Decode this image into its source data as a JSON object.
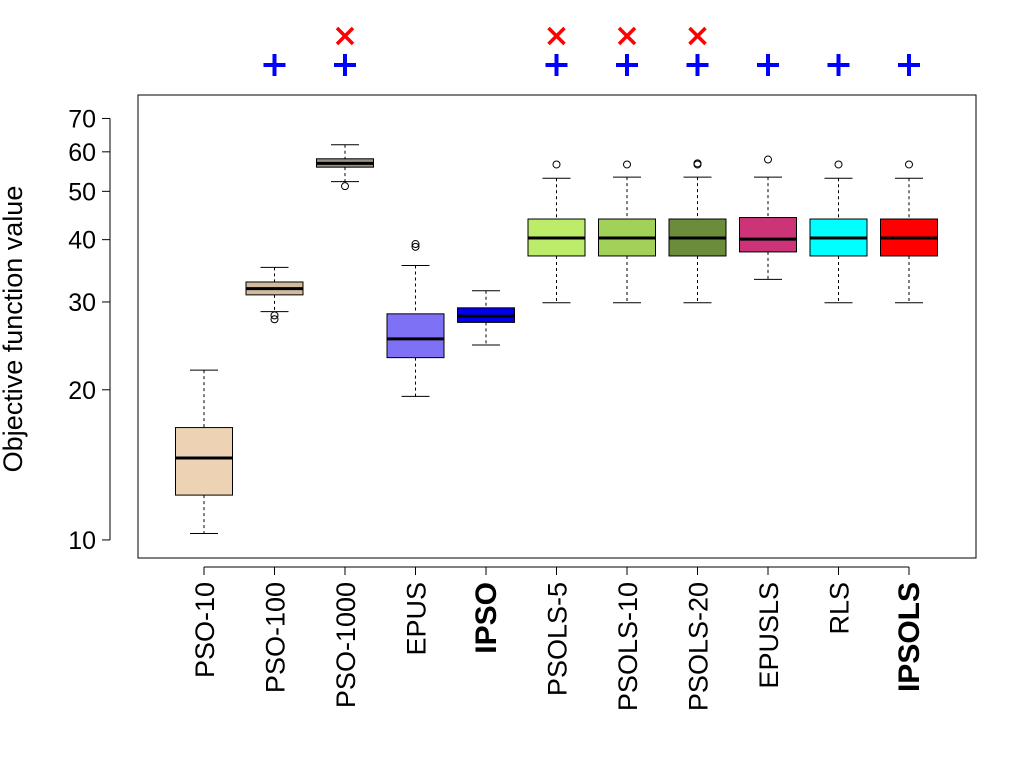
{
  "chart_data": {
    "type": "boxplot",
    "ylabel": "Objective function value",
    "y_scale": "log",
    "ylim": [
      9.2,
      78
    ],
    "y_ticks": [
      10,
      20,
      30,
      40,
      50,
      60,
      70
    ],
    "categories": [
      "PSO-10",
      "PSO-100",
      "PSO-1000",
      "EPUS",
      "IPSO",
      "PSOLS-5",
      "PSOLS-10",
      "PSOLS-20",
      "EPUSLS",
      "RLS",
      "IPSOLS"
    ],
    "bold_categories": [
      "IPSO",
      "IPSOLS"
    ],
    "boxes": [
      {
        "label": "PSO-10",
        "whisker_low": 10.3,
        "q1": 12.3,
        "median": 14.6,
        "q3": 16.8,
        "whisker_high": 21.9,
        "outliers": [],
        "color": "#EDD3B4"
      },
      {
        "label": "PSO-100",
        "whisker_low": 28.7,
        "q1": 31.0,
        "median": 31.9,
        "q3": 32.9,
        "whisker_high": 35.2,
        "outliers": [
          27.7,
          28.2
        ],
        "color": "#D2BCA0"
      },
      {
        "label": "PSO-1000",
        "whisker_low": 52.3,
        "q1": 55.9,
        "median": 56.9,
        "q3": 58.1,
        "whisker_high": 62.0,
        "outliers": [
          51.2
        ],
        "color": "#9C9183"
      },
      {
        "label": "EPUS",
        "whisker_low": 19.4,
        "q1": 23.2,
        "median": 25.3,
        "q3": 28.4,
        "whisker_high": 35.5,
        "outliers": [
          38.7,
          39.2
        ],
        "color": "#7F71F5"
      },
      {
        "label": "IPSO",
        "whisker_low": 24.6,
        "q1": 27.3,
        "median": 28.1,
        "q3": 29.2,
        "whisker_high": 31.6,
        "outliers": [],
        "color": "#0000EE"
      },
      {
        "label": "PSOLS-5",
        "whisker_low": 29.9,
        "q1": 37.1,
        "median": 40.3,
        "q3": 44.0,
        "whisker_high": 53.1,
        "outliers": [
          56.6
        ],
        "color": "#BDEB6A"
      },
      {
        "label": "PSOLS-10",
        "whisker_low": 29.9,
        "q1": 37.1,
        "median": 40.3,
        "q3": 44.0,
        "whisker_high": 53.4,
        "outliers": [
          56.6
        ],
        "color": "#A2D159"
      },
      {
        "label": "PSOLS-20",
        "whisker_low": 29.9,
        "q1": 37.1,
        "median": 40.3,
        "q3": 44.0,
        "whisker_high": 53.4,
        "outliers": [
          56.6,
          56.9
        ],
        "color": "#6B8C3A"
      },
      {
        "label": "EPUSLS",
        "whisker_low": 33.3,
        "q1": 37.8,
        "median": 40.1,
        "q3": 44.3,
        "whisker_high": 53.4,
        "outliers": [
          57.9
        ],
        "color": "#CD3377"
      },
      {
        "label": "RLS",
        "whisker_low": 29.9,
        "q1": 37.1,
        "median": 40.3,
        "q3": 44.0,
        "whisker_high": 53.1,
        "outliers": [
          56.6
        ],
        "color": "#00FFFF"
      },
      {
        "label": "IPSOLS",
        "whisker_low": 29.9,
        "q1": 37.1,
        "median": 40.3,
        "q3": 44.0,
        "whisker_high": 53.1,
        "outliers": [
          56.6
        ],
        "color": "#FF0000"
      }
    ],
    "markers": {
      "plus_color": "#0000FF",
      "cross_color": "#FF0000",
      "plus": [
        "PSO-100",
        "PSO-1000",
        "PSOLS-5",
        "PSOLS-10",
        "PSOLS-20",
        "EPUSLS",
        "RLS",
        "IPSOLS"
      ],
      "cross": [
        "PSO-1000",
        "PSOLS-5",
        "PSOLS-10",
        "PSOLS-20"
      ]
    }
  }
}
